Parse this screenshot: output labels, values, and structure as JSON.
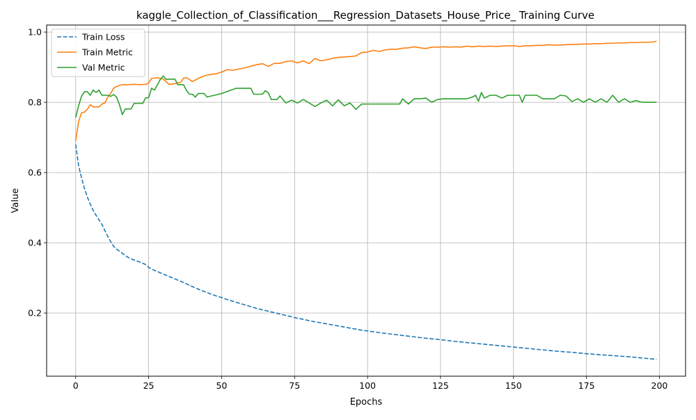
{
  "chart_data": {
    "type": "line",
    "title": "kaggle_Collection_of_Classification___Regression_Datasets_House_Price_ Training Curve",
    "xlabel": "Epochs",
    "ylabel": "Value",
    "xlim": [
      -9.95,
      208.95
    ],
    "ylim": [
      0.02,
      1.02
    ],
    "xticks": [
      0,
      25,
      50,
      75,
      100,
      125,
      150,
      175,
      200
    ],
    "yticks": [
      0.2,
      0.4,
      0.6,
      0.8,
      1.0
    ],
    "xtick_labels": [
      "0",
      "25",
      "50",
      "75",
      "100",
      "125",
      "150",
      "175",
      "200"
    ],
    "ytick_labels": [
      "0.2",
      "0.4",
      "0.6",
      "0.8",
      "1.0"
    ],
    "grid": true,
    "legend_position": "top-left",
    "series": [
      {
        "name": "Train Loss",
        "color": "#1f77b4",
        "dash": "dashed",
        "x": [
          0,
          1,
          2,
          3,
          4,
          5,
          6,
          7,
          8,
          9,
          10,
          11,
          12,
          13,
          14,
          15,
          16,
          17,
          18,
          19,
          20,
          22,
          24,
          25,
          26,
          28,
          30,
          32,
          34,
          36,
          38,
          40,
          42,
          44,
          46,
          48,
          50,
          52,
          54,
          56,
          58,
          60,
          62,
          64,
          66,
          68,
          70,
          72,
          74,
          76,
          78,
          80,
          82,
          84,
          86,
          88,
          90,
          92,
          94,
          96,
          98,
          100,
          105,
          110,
          115,
          120,
          125,
          130,
          135,
          140,
          145,
          150,
          155,
          160,
          165,
          170,
          175,
          180,
          185,
          190,
          195,
          199
        ],
        "values": [
          0.68,
          0.62,
          0.585,
          0.555,
          0.53,
          0.51,
          0.492,
          0.478,
          0.465,
          0.452,
          0.435,
          0.418,
          0.403,
          0.39,
          0.382,
          0.376,
          0.37,
          0.364,
          0.358,
          0.354,
          0.351,
          0.345,
          0.338,
          0.33,
          0.325,
          0.318,
          0.311,
          0.304,
          0.297,
          0.29,
          0.283,
          0.275,
          0.268,
          0.261,
          0.255,
          0.249,
          0.244,
          0.238,
          0.233,
          0.228,
          0.223,
          0.218,
          0.213,
          0.209,
          0.205,
          0.201,
          0.197,
          0.193,
          0.189,
          0.185,
          0.182,
          0.178,
          0.175,
          0.172,
          0.169,
          0.166,
          0.163,
          0.16,
          0.157,
          0.154,
          0.151,
          0.149,
          0.143,
          0.138,
          0.133,
          0.128,
          0.124,
          0.119,
          0.115,
          0.111,
          0.107,
          0.103,
          0.099,
          0.095,
          0.091,
          0.088,
          0.084,
          0.081,
          0.078,
          0.075,
          0.071,
          0.068
        ]
      },
      {
        "name": "Train Metric",
        "color": "#ff7f0e",
        "dash": "solid",
        "x": [
          0,
          1,
          2,
          3,
          4,
          5,
          6,
          7,
          8,
          9,
          10,
          11,
          12,
          13,
          14,
          15,
          16,
          18,
          20,
          22,
          24,
          25,
          26,
          28,
          30,
          32,
          34,
          36,
          37,
          38,
          40,
          42,
          44,
          46,
          48,
          50,
          52,
          54,
          56,
          58,
          60,
          62,
          64,
          66,
          68,
          70,
          72,
          74,
          76,
          78,
          80,
          82,
          84,
          86,
          88,
          90,
          92,
          94,
          96,
          98,
          100,
          102,
          104,
          106,
          108,
          110,
          112,
          114,
          116,
          118,
          120,
          122,
          124,
          126,
          128,
          130,
          132,
          134,
          136,
          138,
          140,
          142,
          144,
          146,
          148,
          150,
          152,
          154,
          156,
          158,
          160,
          162,
          164,
          166,
          168,
          170,
          172,
          174,
          176,
          178,
          180,
          182,
          184,
          186,
          188,
          190,
          192,
          194,
          196,
          198,
          199
        ],
        "values": [
          0.69,
          0.745,
          0.77,
          0.772,
          0.78,
          0.793,
          0.787,
          0.787,
          0.787,
          0.795,
          0.798,
          0.815,
          0.825,
          0.84,
          0.845,
          0.848,
          0.85,
          0.85,
          0.851,
          0.85,
          0.851,
          0.855,
          0.868,
          0.87,
          0.866,
          0.851,
          0.853,
          0.857,
          0.869,
          0.87,
          0.859,
          0.868,
          0.875,
          0.879,
          0.881,
          0.886,
          0.893,
          0.891,
          0.895,
          0.898,
          0.903,
          0.907,
          0.91,
          0.902,
          0.911,
          0.911,
          0.916,
          0.918,
          0.912,
          0.918,
          0.91,
          0.925,
          0.918,
          0.921,
          0.925,
          0.928,
          0.929,
          0.93,
          0.932,
          0.942,
          0.943,
          0.948,
          0.945,
          0.949,
          0.951,
          0.951,
          0.954,
          0.955,
          0.958,
          0.955,
          0.953,
          0.957,
          0.957,
          0.958,
          0.957,
          0.958,
          0.957,
          0.96,
          0.958,
          0.96,
          0.959,
          0.96,
          0.959,
          0.96,
          0.961,
          0.961,
          0.959,
          0.961,
          0.961,
          0.962,
          0.962,
          0.964,
          0.963,
          0.963,
          0.964,
          0.965,
          0.965,
          0.966,
          0.966,
          0.967,
          0.967,
          0.968,
          0.968,
          0.969,
          0.969,
          0.97,
          0.97,
          0.971,
          0.971,
          0.972,
          0.974
        ]
      },
      {
        "name": "Val Metric",
        "color": "#2ca02c",
        "dash": "solid",
        "x": [
          0,
          1,
          2,
          3,
          4,
          5,
          6,
          7,
          8,
          9,
          10,
          11,
          12,
          13,
          14,
          15,
          16,
          17,
          18,
          19,
          20,
          21,
          22,
          23,
          24,
          25,
          26,
          27,
          28,
          29,
          30,
          31,
          32,
          33,
          34,
          35,
          36,
          37,
          38,
          39,
          40,
          41,
          42,
          43,
          44,
          45,
          50,
          55,
          60,
          61,
          62,
          63,
          64,
          65,
          66,
          67,
          68,
          69,
          70,
          72,
          74,
          76,
          78,
          80,
          82,
          84,
          86,
          88,
          90,
          92,
          94,
          96,
          98,
          100,
          110,
          111,
          112,
          114,
          116,
          118,
          120,
          122,
          124,
          126,
          130,
          134,
          136,
          137,
          138,
          139,
          140,
          142,
          144,
          146,
          148,
          150,
          152,
          153,
          154,
          156,
          158,
          160,
          162,
          164,
          166,
          168,
          170,
          172,
          174,
          176,
          178,
          180,
          182,
          184,
          186,
          188,
          190,
          192,
          194,
          196,
          198,
          199
        ],
        "values": [
          0.757,
          0.79,
          0.817,
          0.83,
          0.83,
          0.82,
          0.835,
          0.828,
          0.835,
          0.82,
          0.82,
          0.82,
          0.817,
          0.822,
          0.815,
          0.793,
          0.765,
          0.781,
          0.781,
          0.781,
          0.797,
          0.797,
          0.797,
          0.797,
          0.813,
          0.813,
          0.84,
          0.835,
          0.85,
          0.865,
          0.875,
          0.865,
          0.866,
          0.866,
          0.866,
          0.85,
          0.85,
          0.85,
          0.833,
          0.823,
          0.823,
          0.815,
          0.825,
          0.825,
          0.825,
          0.815,
          0.825,
          0.84,
          0.84,
          0.823,
          0.823,
          0.823,
          0.823,
          0.833,
          0.827,
          0.808,
          0.808,
          0.808,
          0.818,
          0.798,
          0.806,
          0.798,
          0.808,
          0.798,
          0.788,
          0.798,
          0.806,
          0.79,
          0.807,
          0.79,
          0.798,
          0.78,
          0.795,
          0.795,
          0.795,
          0.795,
          0.81,
          0.795,
          0.81,
          0.81,
          0.812,
          0.8,
          0.808,
          0.81,
          0.81,
          0.81,
          0.815,
          0.82,
          0.803,
          0.828,
          0.812,
          0.82,
          0.82,
          0.812,
          0.82,
          0.82,
          0.82,
          0.8,
          0.82,
          0.82,
          0.82,
          0.81,
          0.81,
          0.81,
          0.82,
          0.818,
          0.802,
          0.81,
          0.8,
          0.81,
          0.8,
          0.81,
          0.8,
          0.82,
          0.8,
          0.81,
          0.8,
          0.805,
          0.8,
          0.8,
          0.8,
          0.8
        ]
      }
    ]
  }
}
